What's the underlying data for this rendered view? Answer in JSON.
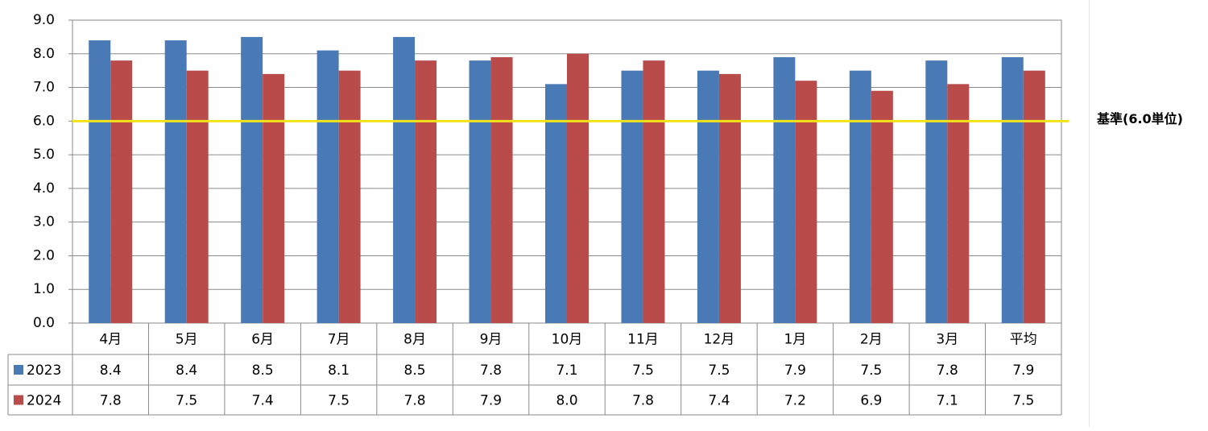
{
  "chart_data": {
    "type": "bar",
    "categories": [
      "4月",
      "5月",
      "6月",
      "7月",
      "8月",
      "9月",
      "10月",
      "11月",
      "12月",
      "1月",
      "2月",
      "3月",
      "平均"
    ],
    "series": [
      {
        "name": "2023",
        "color": "#4a7ab5",
        "values": [
          8.4,
          8.4,
          8.5,
          8.1,
          8.5,
          7.8,
          7.1,
          7.5,
          7.5,
          7.9,
          7.5,
          7.8,
          7.9
        ]
      },
      {
        "name": "2024",
        "color": "#b94b4b",
        "values": [
          7.8,
          7.5,
          7.4,
          7.5,
          7.8,
          7.9,
          8.0,
          7.8,
          7.4,
          7.2,
          6.9,
          7.1,
          7.5
        ]
      }
    ],
    "table_values": {
      "2023": [
        "8.4",
        "8.4",
        "8.5",
        "8.1",
        "8.5",
        "7.8",
        "7.1",
        "7.5",
        "7.5",
        "7.9",
        "7.5",
        "7.8",
        "7.9"
      ],
      "2024": [
        "7.8",
        "7.5",
        "7.4",
        "7.5",
        "7.8",
        "7.9",
        "8.0",
        "7.8",
        "7.4",
        "7.2",
        "6.9",
        "7.1",
        "7.5"
      ]
    },
    "ylim": [
      0,
      9
    ],
    "yticks": [
      "0.0",
      "1.0",
      "2.0",
      "3.0",
      "4.0",
      "5.0",
      "6.0",
      "7.0",
      "8.0",
      "9.0"
    ],
    "reference_line": {
      "value": 6.0,
      "label": "基準(6.0単位)",
      "color": "#f2e21a"
    },
    "grid": true,
    "legend": "data-table"
  }
}
